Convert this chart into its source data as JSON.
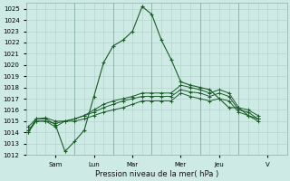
{
  "xlabel": "Pression niveau de la mer( hPa )",
  "bg_color": "#ceeae4",
  "grid_color": "#b0d0ca",
  "line_color_main": "#1a5c28",
  "line_color_flat": "#1a5c28",
  "ylim": [
    1012,
    1025.5
  ],
  "ytick_min": 1012,
  "ytick_max": 1025,
  "xlim": [
    0,
    13.5
  ],
  "day_tick_positions": [
    1.5,
    3.5,
    5.5,
    8.0,
    10.0,
    12.5
  ],
  "day_tick_labels": [
    "Sam",
    "Lun",
    "Mar",
    "Mer",
    "Jeu",
    "V"
  ],
  "day_vline_positions": [
    2.5,
    4.5,
    6.5,
    9.0,
    11.0
  ],
  "series1_x": [
    0.1,
    0.5,
    1.0,
    1.5,
    2.0,
    2.5,
    3.0,
    3.5,
    4.0,
    4.5,
    5.0,
    5.5,
    6.0,
    6.5,
    7.0,
    7.5,
    8.0,
    8.5,
    9.0,
    9.5,
    10.0,
    10.5,
    11.0,
    11.5,
    12.0
  ],
  "series1_y": [
    1014.0,
    1015.2,
    1015.2,
    1014.7,
    1012.3,
    1013.2,
    1014.2,
    1017.2,
    1020.2,
    1021.7,
    1022.2,
    1023.0,
    1025.2,
    1024.5,
    1022.2,
    1020.5,
    1018.5,
    1018.2,
    1018.0,
    1017.8,
    1017.0,
    1016.2,
    1016.2,
    1015.5,
    1015.2
  ],
  "series2_x": [
    0.1,
    0.5,
    1.0,
    1.5,
    2.0,
    2.5,
    3.0,
    3.5,
    4.0,
    4.5,
    5.0,
    5.5,
    6.0,
    6.5,
    7.0,
    7.5,
    8.0,
    8.5,
    9.0,
    9.5,
    10.0,
    10.5,
    11.0,
    11.5,
    12.0
  ],
  "series2_y": [
    1014.5,
    1015.2,
    1015.3,
    1015.0,
    1015.0,
    1015.2,
    1015.5,
    1016.0,
    1016.5,
    1016.8,
    1017.0,
    1017.2,
    1017.5,
    1017.5,
    1017.5,
    1017.5,
    1018.2,
    1018.0,
    1017.8,
    1017.5,
    1017.8,
    1017.5,
    1016.2,
    1016.0,
    1015.5
  ],
  "series3_x": [
    0.1,
    0.5,
    1.0,
    1.5,
    2.0,
    2.5,
    3.0,
    3.5,
    4.0,
    4.5,
    5.0,
    5.5,
    6.0,
    6.5,
    7.0,
    7.5,
    8.0,
    8.5,
    9.0,
    9.5,
    10.0,
    10.5,
    11.0,
    11.5,
    12.0
  ],
  "series3_y": [
    1014.2,
    1015.0,
    1015.0,
    1014.8,
    1015.0,
    1015.2,
    1015.5,
    1015.8,
    1016.2,
    1016.5,
    1016.8,
    1017.0,
    1017.2,
    1017.2,
    1017.2,
    1017.2,
    1017.8,
    1017.6,
    1017.5,
    1017.2,
    1017.5,
    1017.2,
    1016.0,
    1015.8,
    1015.2
  ],
  "series4_x": [
    0.1,
    0.5,
    1.0,
    1.5,
    2.0,
    2.5,
    3.0,
    3.5,
    4.0,
    4.5,
    5.0,
    5.5,
    6.0,
    6.5,
    7.0,
    7.5,
    8.0,
    8.5,
    9.0,
    9.5,
    10.0,
    10.5,
    11.0,
    11.5,
    12.0
  ],
  "series4_y": [
    1014.0,
    1015.0,
    1015.0,
    1014.5,
    1015.0,
    1015.0,
    1015.2,
    1015.5,
    1015.8,
    1016.0,
    1016.2,
    1016.5,
    1016.8,
    1016.8,
    1016.8,
    1016.8,
    1017.5,
    1017.2,
    1017.0,
    1016.8,
    1017.0,
    1016.8,
    1015.8,
    1015.5,
    1015.0
  ]
}
